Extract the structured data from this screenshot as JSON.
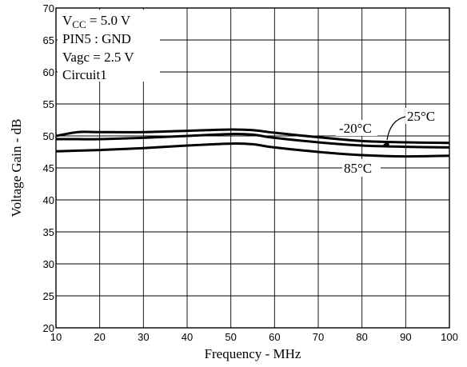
{
  "chart_data": {
    "type": "line",
    "title": "",
    "xlabel": "Frequency - MHz",
    "ylabel": "Voltage Gain - dB",
    "xlim": [
      10,
      100
    ],
    "ylim": [
      20,
      70
    ],
    "x_ticks": [
      "10",
      "20",
      "30",
      "40",
      "50",
      "60",
      "70",
      "80",
      "90",
      "100"
    ],
    "y_ticks": [
      "20",
      "25",
      "30",
      "35",
      "40",
      "45",
      "50",
      "55",
      "60",
      "65",
      "70"
    ],
    "grid": true,
    "conditions": {
      "vcc_base": "V",
      "vcc_sub": "CC",
      "vcc_value": " = 5.0 V",
      "pin5": "PIN5 : GND",
      "vagc": "Vagc = 2.5 V",
      "circuit": "Circuit1"
    },
    "series": [
      {
        "name": "-20°C",
        "x": [
          10,
          15,
          20,
          30,
          40,
          50,
          55,
          60,
          70,
          80,
          90,
          100
        ],
        "y": [
          50.0,
          50.6,
          50.6,
          50.6,
          50.8,
          51.0,
          50.9,
          50.5,
          49.8,
          49.2,
          49.0,
          48.9
        ]
      },
      {
        "name": "25°C",
        "x": [
          10,
          15,
          20,
          30,
          40,
          50,
          55,
          60,
          70,
          80,
          90,
          100
        ],
        "y": [
          49.5,
          49.5,
          49.5,
          49.7,
          50.0,
          50.3,
          50.2,
          49.7,
          49.0,
          48.5,
          48.3,
          48.2
        ]
      },
      {
        "name": "85°C",
        "x": [
          10,
          15,
          20,
          30,
          40,
          50,
          55,
          60,
          70,
          80,
          90,
          100
        ],
        "y": [
          47.6,
          47.7,
          47.8,
          48.1,
          48.5,
          48.8,
          48.7,
          48.2,
          47.5,
          47.0,
          46.8,
          46.9
        ]
      }
    ],
    "annotations": [
      {
        "label": "-20°C",
        "x": 82,
        "y": 49.5
      },
      {
        "label": "25°C",
        "x": 95,
        "y": 52.0
      },
      {
        "label": "85°C",
        "x": 83,
        "y": 46.3
      }
    ]
  }
}
